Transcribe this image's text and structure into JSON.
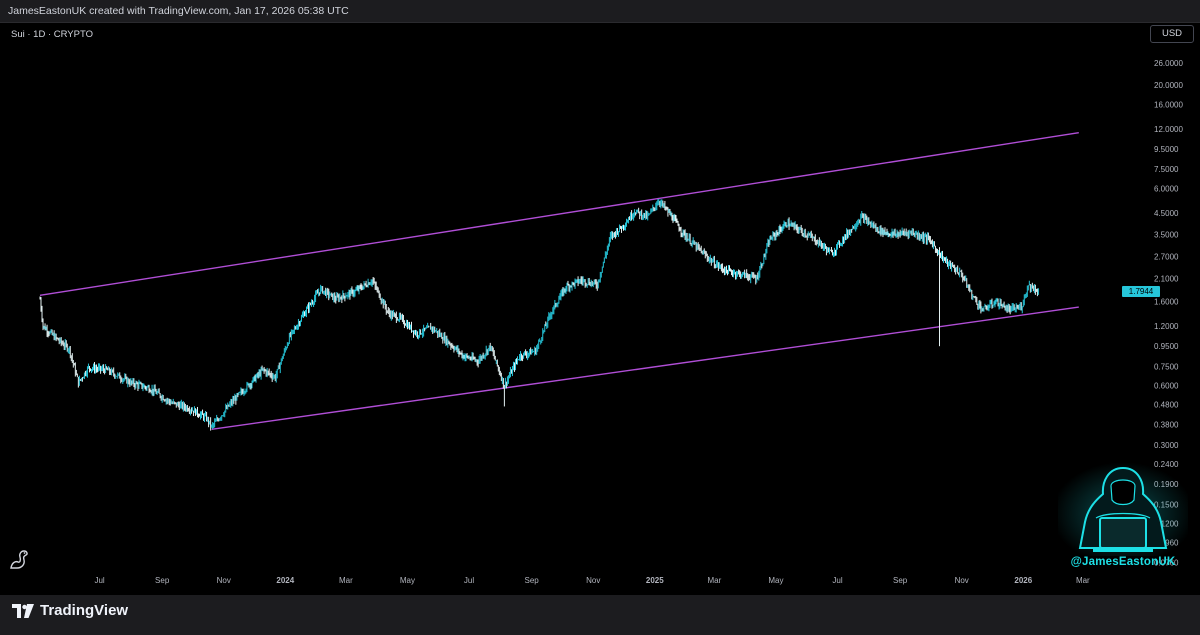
{
  "header": {
    "credit": "JamesEastonUK created with TradingView.com, Jan 17, 2026 05:38 UTC"
  },
  "symbol": {
    "label": "Sui · 1D · CRYPTO"
  },
  "currency": {
    "label": "USD"
  },
  "footer": {
    "brand": "TradingView"
  },
  "watermark": {
    "handle": "@JamesEastonUK"
  },
  "colors": {
    "candle": "#26c6da",
    "channel": "#b04ed6",
    "axis_text": "#b2b5be",
    "last_price_bg": "#26c6da"
  },
  "chart_data": {
    "type": "candlestick",
    "title": "",
    "y_scale": "log",
    "y_ticks": [
      "26.0000",
      "20.0000",
      "16.0000",
      "12.0000",
      "9.5000",
      "7.5000",
      "6.0000",
      "4.5000",
      "3.5000",
      "2.7000",
      "2.1000",
      "1.6000",
      "1.2000",
      "0.9500",
      "0.7500",
      "0.6000",
      "0.4800",
      "0.3800",
      "0.3000",
      "0.2400",
      "0.1900",
      "0.1500",
      "0.1200",
      "0.0960",
      "0.0760"
    ],
    "y_tick_values": [
      26,
      20,
      16,
      12,
      9.5,
      7.5,
      6,
      4.5,
      3.5,
      2.7,
      2.1,
      1.6,
      1.2,
      0.95,
      0.75,
      0.6,
      0.48,
      0.38,
      0.3,
      0.24,
      0.19,
      0.15,
      0.12,
      0.096,
      0.076
    ],
    "x_ticks": [
      {
        "label": "Jul",
        "date": "2023-07-01",
        "bold": false
      },
      {
        "label": "Sep",
        "date": "2023-09-01",
        "bold": false
      },
      {
        "label": "Nov",
        "date": "2023-11-01",
        "bold": false
      },
      {
        "label": "2024",
        "date": "2024-01-01",
        "bold": true
      },
      {
        "label": "Mar",
        "date": "2024-03-01",
        "bold": false
      },
      {
        "label": "May",
        "date": "2024-05-01",
        "bold": false
      },
      {
        "label": "Jul",
        "date": "2024-07-01",
        "bold": false
      },
      {
        "label": "Sep",
        "date": "2024-09-01",
        "bold": false
      },
      {
        "label": "Nov",
        "date": "2024-11-01",
        "bold": false
      },
      {
        "label": "2025",
        "date": "2025-01-01",
        "bold": true
      },
      {
        "label": "Mar",
        "date": "2025-03-01",
        "bold": false
      },
      {
        "label": "May",
        "date": "2025-05-01",
        "bold": false
      },
      {
        "label": "Jul",
        "date": "2025-07-01",
        "bold": false
      },
      {
        "label": "Sep",
        "date": "2025-09-01",
        "bold": false
      },
      {
        "label": "Nov",
        "date": "2025-11-01",
        "bold": false
      },
      {
        "label": "2026",
        "date": "2026-01-01",
        "bold": true
      },
      {
        "label": "Mar",
        "date": "2026-03-01",
        "bold": false
      }
    ],
    "x_range": [
      "2023-05-03",
      "2026-03-18"
    ],
    "y_range": [
      0.068,
      32
    ],
    "last_price": "1.7944",
    "last_price_value": 1.7944,
    "price_path": [
      {
        "date": "2023-05-03",
        "price": 1.65
      },
      {
        "date": "2023-05-06",
        "price": 1.2
      },
      {
        "date": "2023-05-18",
        "price": 1.05
      },
      {
        "date": "2023-06-01",
        "price": 0.92
      },
      {
        "date": "2023-06-10",
        "price": 0.62
      },
      {
        "date": "2023-06-20",
        "price": 0.74
      },
      {
        "date": "2023-07-08",
        "price": 0.72
      },
      {
        "date": "2023-08-01",
        "price": 0.62
      },
      {
        "date": "2023-08-20",
        "price": 0.58
      },
      {
        "date": "2023-09-10",
        "price": 0.49
      },
      {
        "date": "2023-09-28",
        "price": 0.46
      },
      {
        "date": "2023-10-15",
        "price": 0.41
      },
      {
        "date": "2023-10-20",
        "price": 0.37
      },
      {
        "date": "2023-11-10",
        "price": 0.5
      },
      {
        "date": "2023-11-25",
        "price": 0.6
      },
      {
        "date": "2023-12-10",
        "price": 0.72
      },
      {
        "date": "2023-12-22",
        "price": 0.66
      },
      {
        "date": "2024-01-05",
        "price": 1.05
      },
      {
        "date": "2024-01-20",
        "price": 1.4
      },
      {
        "date": "2024-02-05",
        "price": 1.85
      },
      {
        "date": "2024-02-20",
        "price": 1.65
      },
      {
        "date": "2024-03-10",
        "price": 1.8
      },
      {
        "date": "2024-03-27",
        "price": 2.05
      },
      {
        "date": "2024-04-12",
        "price": 1.4
      },
      {
        "date": "2024-04-25",
        "price": 1.3
      },
      {
        "date": "2024-05-10",
        "price": 1.1
      },
      {
        "date": "2024-05-25",
        "price": 1.18
      },
      {
        "date": "2024-06-10",
        "price": 1.0
      },
      {
        "date": "2024-06-25",
        "price": 0.85
      },
      {
        "date": "2024-07-10",
        "price": 0.8
      },
      {
        "date": "2024-07-22",
        "price": 0.95
      },
      {
        "date": "2024-08-05",
        "price": 0.6
      },
      {
        "date": "2024-08-20",
        "price": 0.85
      },
      {
        "date": "2024-09-05",
        "price": 0.9
      },
      {
        "date": "2024-09-20",
        "price": 1.4
      },
      {
        "date": "2024-10-05",
        "price": 1.9
      },
      {
        "date": "2024-10-20",
        "price": 2.05
      },
      {
        "date": "2024-11-05",
        "price": 1.95
      },
      {
        "date": "2024-11-18",
        "price": 3.4
      },
      {
        "date": "2024-12-01",
        "price": 3.9
      },
      {
        "date": "2024-12-12",
        "price": 4.6
      },
      {
        "date": "2024-12-25",
        "price": 4.3
      },
      {
        "date": "2025-01-05",
        "price": 5.2
      },
      {
        "date": "2025-01-18",
        "price": 4.3
      },
      {
        "date": "2025-01-30",
        "price": 3.5
      },
      {
        "date": "2025-02-15",
        "price": 2.9
      },
      {
        "date": "2025-03-01",
        "price": 2.5
      },
      {
        "date": "2025-03-12",
        "price": 2.3
      },
      {
        "date": "2025-03-28",
        "price": 2.2
      },
      {
        "date": "2025-04-12",
        "price": 2.1
      },
      {
        "date": "2025-04-25",
        "price": 3.3
      },
      {
        "date": "2025-05-12",
        "price": 4.0
      },
      {
        "date": "2025-05-28",
        "price": 3.6
      },
      {
        "date": "2025-06-12",
        "price": 3.2
      },
      {
        "date": "2025-06-25",
        "price": 2.8
      },
      {
        "date": "2025-07-12",
        "price": 3.6
      },
      {
        "date": "2025-07-25",
        "price": 4.3
      },
      {
        "date": "2025-08-10",
        "price": 3.7
      },
      {
        "date": "2025-08-25",
        "price": 3.5
      },
      {
        "date": "2025-09-12",
        "price": 3.6
      },
      {
        "date": "2025-09-30",
        "price": 3.3
      },
      {
        "date": "2025-10-10",
        "price": 2.8
      },
      {
        "date": "2025-10-18",
        "price": 2.5
      },
      {
        "date": "2025-11-01",
        "price": 2.2
      },
      {
        "date": "2025-11-12",
        "price": 1.7
      },
      {
        "date": "2025-11-22",
        "price": 1.45
      },
      {
        "date": "2025-12-05",
        "price": 1.6
      },
      {
        "date": "2025-12-18",
        "price": 1.45
      },
      {
        "date": "2025-12-30",
        "price": 1.5
      },
      {
        "date": "2026-01-06",
        "price": 1.95
      },
      {
        "date": "2026-01-17",
        "price": 1.79
      }
    ],
    "wicks": [
      {
        "date": "2024-08-05",
        "low": 0.47
      },
      {
        "date": "2025-10-10",
        "low": 0.95
      }
    ],
    "channel": {
      "upper": [
        {
          "date": "2023-05-03",
          "price": 1.72
        },
        {
          "date": "2026-02-25",
          "price": 11.5
        }
      ],
      "lower": [
        {
          "date": "2023-10-20",
          "price": 0.36
        },
        {
          "date": "2026-02-25",
          "price": 1.5
        }
      ]
    }
  }
}
